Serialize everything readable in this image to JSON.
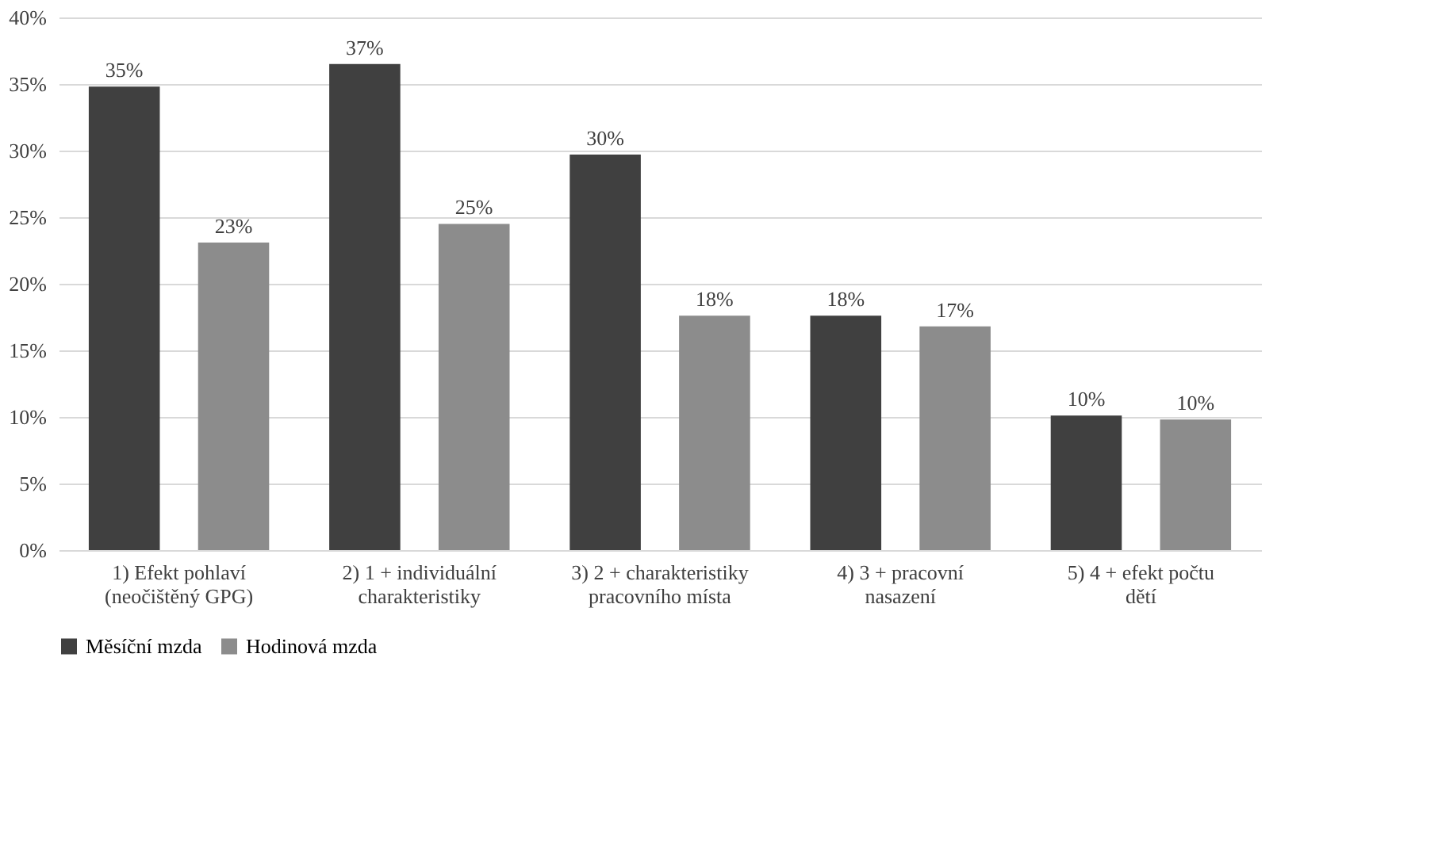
{
  "chart_data": {
    "type": "bar",
    "categories": [
      "1) Efekt pohlaví\n(neočištěný GPG)",
      "2) 1 + individuální\ncharakteristiky",
      "3) 2 + charakteristiky\npracovního místa",
      "4) 3 + pracovní\nnasazení",
      "5) 4 + efekt počtu\ndětí"
    ],
    "series": [
      {
        "name": "Měsíční mzda",
        "color": "#404040",
        "values": [
          34.8,
          36.5,
          29.7,
          17.6,
          10.1
        ],
        "value_labels": [
          "35%",
          "37%",
          "30%",
          "18%",
          "10%"
        ]
      },
      {
        "name": "Hodinová mzda",
        "color": "#8c8c8c",
        "values": [
          23.1,
          24.5,
          17.6,
          16.8,
          9.8
        ],
        "value_labels": [
          "23%",
          "25%",
          "18%",
          "17%",
          "10%"
        ]
      }
    ],
    "ylim": [
      0,
      40
    ],
    "yticks": [
      {
        "value": 0,
        "label": "0%"
      },
      {
        "value": 5,
        "label": "5%"
      },
      {
        "value": 10,
        "label": "10%"
      },
      {
        "value": 15,
        "label": "15%"
      },
      {
        "value": 20,
        "label": "20%"
      },
      {
        "value": 25,
        "label": "25%"
      },
      {
        "value": 30,
        "label": "30%"
      },
      {
        "value": 35,
        "label": "35%"
      },
      {
        "value": 40,
        "label": "40%"
      }
    ],
    "grid": "y",
    "legend": "bottom"
  }
}
